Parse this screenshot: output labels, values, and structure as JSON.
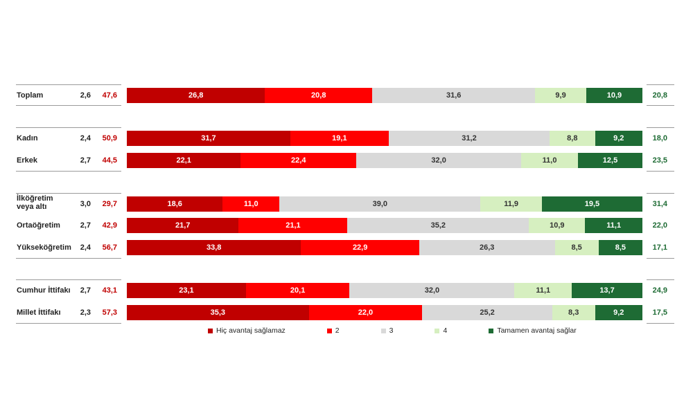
{
  "chart_data": {
    "type": "bar",
    "orientation": "horizontal-stacked",
    "legend_position": "bottom",
    "colors": [
      "#c00000",
      "#ff0000",
      "#d9d9d9",
      "#d6efc0",
      "#1e6b34"
    ],
    "series": [
      {
        "name": "Hiç avantaj  sağlamaz"
      },
      {
        "name": "2"
      },
      {
        "name": "3"
      },
      {
        "name": "4"
      },
      {
        "name": "Tamamen avantaj  sağlar"
      }
    ],
    "rows": [
      {
        "label": "Toplam",
        "mean": "2,6",
        "neg": "47,6",
        "pos": "20,8",
        "values": [
          26.8,
          20.8,
          31.6,
          9.9,
          10.9
        ],
        "texts": [
          "26,8",
          "20,8",
          "31,6",
          "9,9",
          "10,9"
        ]
      },
      {
        "label": "Kadın",
        "mean": "2,4",
        "neg": "50,9",
        "pos": "18,0",
        "values": [
          31.7,
          19.1,
          31.2,
          8.8,
          9.2
        ],
        "texts": [
          "31,7",
          "19,1",
          "31,2",
          "8,8",
          "9,2"
        ]
      },
      {
        "label": "Erkek",
        "mean": "2,7",
        "neg": "44,5",
        "pos": "23,5",
        "values": [
          22.1,
          22.4,
          32.0,
          11.0,
          12.5
        ],
        "texts": [
          "22,1",
          "22,4",
          "32,0",
          "11,0",
          "12,5"
        ]
      },
      {
        "label": "İlköğretim veya altı",
        "mean": "3,0",
        "neg": "29,7",
        "pos": "31,4",
        "values": [
          18.6,
          11.0,
          39.0,
          11.9,
          19.5
        ],
        "texts": [
          "18,6",
          "11,0",
          "39,0",
          "11,9",
          "19,5"
        ]
      },
      {
        "label": "Ortaöğretim",
        "mean": "2,7",
        "neg": "42,9",
        "pos": "22,0",
        "values": [
          21.7,
          21.1,
          35.2,
          10.9,
          11.1
        ],
        "texts": [
          "21,7",
          "21,1",
          "35,2",
          "10,9",
          "11,1"
        ]
      },
      {
        "label": "Yükseköğretim",
        "mean": "2,4",
        "neg": "56,7",
        "pos": "17,1",
        "values": [
          33.8,
          22.9,
          26.3,
          8.5,
          8.5
        ],
        "texts": [
          "33,8",
          "22,9",
          "26,3",
          "8,5",
          "8,5"
        ]
      },
      {
        "label": "Cumhur İttifakı",
        "mean": "2,7",
        "neg": "43,1",
        "pos": "24,9",
        "values": [
          23.1,
          20.1,
          32.0,
          11.1,
          13.7
        ],
        "texts": [
          "23,1",
          "20,1",
          "32,0",
          "11,1",
          "13,7"
        ]
      },
      {
        "label": "Millet İttifakı",
        "mean": "2,3",
        "neg": "57,3",
        "pos": "17,5",
        "values": [
          35.3,
          22.0,
          25.2,
          8.3,
          9.2
        ],
        "texts": [
          "35,3",
          "22,0",
          "25,2",
          "8,3",
          "9,2"
        ]
      }
    ]
  }
}
